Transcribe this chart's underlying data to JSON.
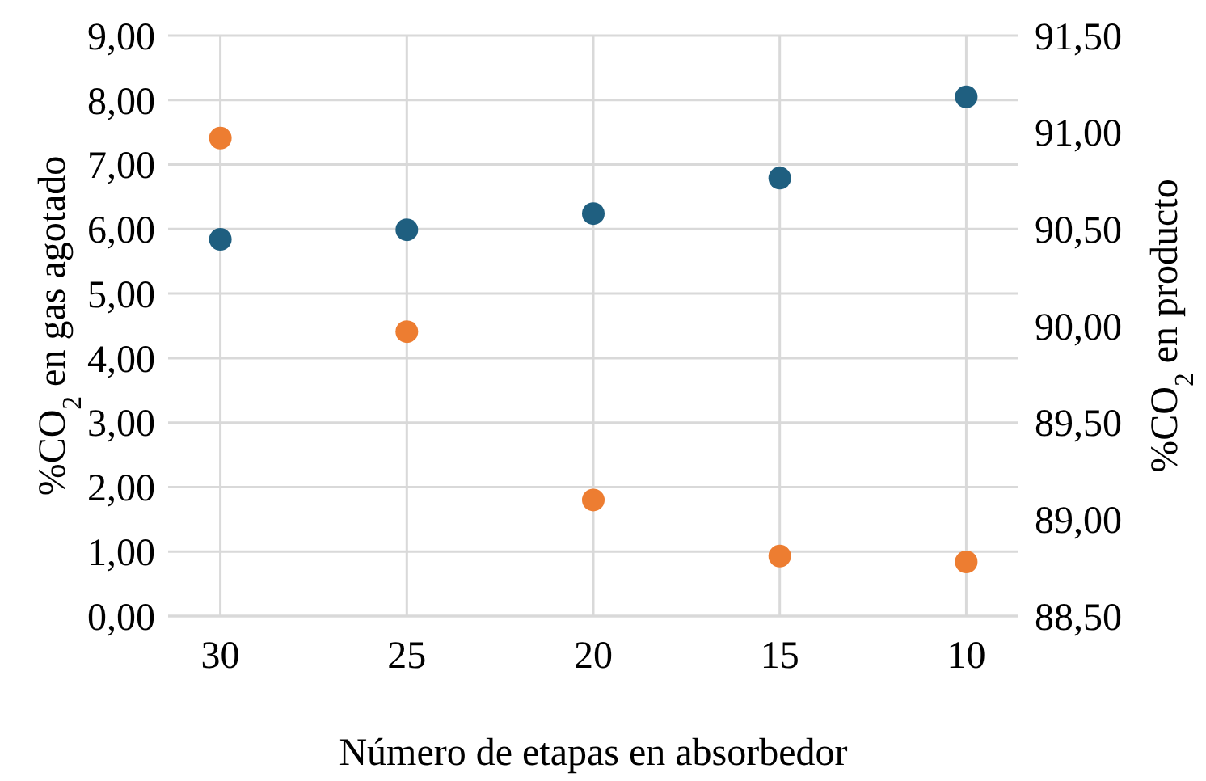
{
  "chart_data": {
    "type": "scatter",
    "xlabel": "Número de etapas en absorbedor",
    "ylabel": "%CO$_{2}$ en gas agotado",
    "y2label": "%CO$_{2}$ en producto",
    "categories": [
      "30",
      "25",
      "20",
      "15",
      "10"
    ],
    "series": [
      {
        "color": "#1f5f80",
        "values": [
          5.84,
          5.99,
          6.24,
          6.79,
          8.05
        ]
      },
      {
        "color": "#ed7d31",
        "axis": "y2",
        "values": [
          90.97,
          89.97,
          89.1,
          88.81,
          88.78
        ]
      }
    ],
    "ylim": [
      0,
      9
    ],
    "yticks": [
      {
        "value": 0,
        "label": "0,00"
      },
      {
        "value": 1,
        "label": "1,00"
      },
      {
        "value": 2,
        "label": "2,00"
      },
      {
        "value": 3,
        "label": "3,00"
      },
      {
        "value": 4,
        "label": "4,00"
      },
      {
        "value": 5,
        "label": "5,00"
      },
      {
        "value": 6,
        "label": "6,00"
      },
      {
        "value": 7,
        "label": "7,00"
      },
      {
        "value": 8,
        "label": "8,00"
      },
      {
        "value": 9,
        "label": "9,00"
      }
    ],
    "y2lim": [
      88.5,
      91.5
    ],
    "y2ticks": [
      {
        "value": 88.5,
        "label": "88,50"
      },
      {
        "value": 89,
        "label": "89,00"
      },
      {
        "value": 89.5,
        "label": "89,50"
      },
      {
        "value": 90,
        "label": "90,00"
      },
      {
        "value": 90.5,
        "label": "90,50"
      },
      {
        "value": 91,
        "label": "91,00"
      },
      {
        "value": 91.5,
        "label": "91,50"
      }
    ],
    "grid": true,
    "marker": "circle"
  }
}
